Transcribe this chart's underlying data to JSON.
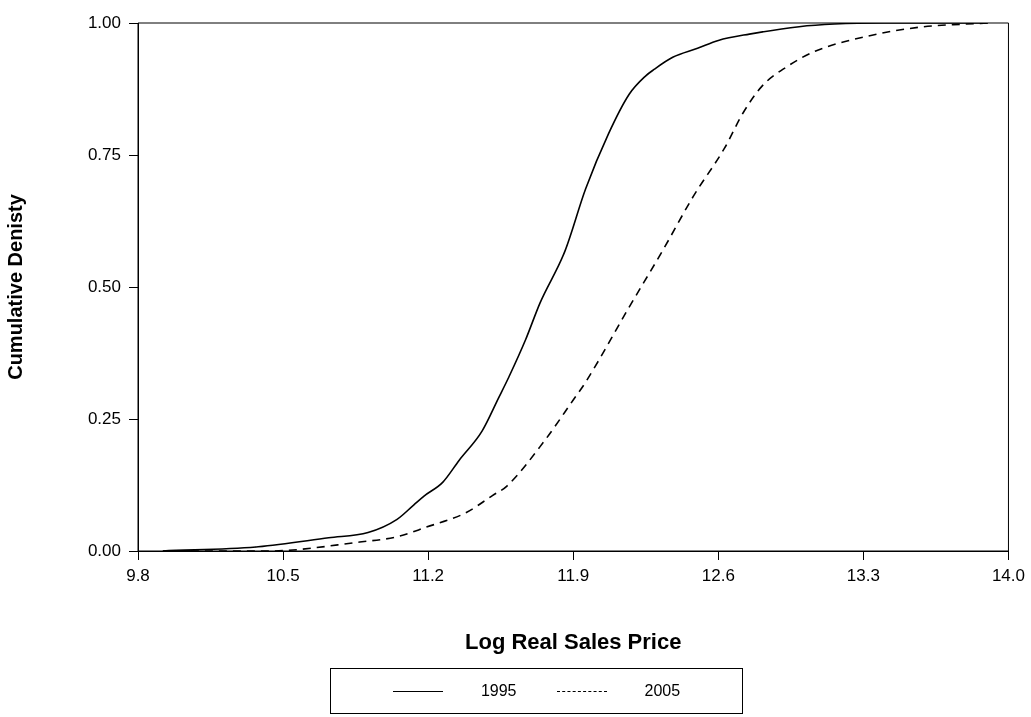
{
  "chart_data": {
    "type": "line",
    "xlabel": "Log Real Sales Price",
    "ylabel": "Cumulative Denisty",
    "xlim": [
      9.8,
      14.0
    ],
    "ylim": [
      0,
      1
    ],
    "xticks": [
      9.8,
      10.5,
      11.2,
      11.9,
      12.6,
      13.3,
      {
        "value": 14,
        "label": "14.0"
      }
    ],
    "yticks": [
      {
        "value": 0,
        "label": "0.00"
      },
      {
        "value": 0.25,
        "label": "0.25"
      },
      {
        "value": 0.5,
        "label": "0.50"
      },
      {
        "value": 0.75,
        "label": "0.75"
      },
      {
        "value": 1,
        "label": "1.00"
      }
    ],
    "legend": "bottom",
    "marker": "none",
    "series": [
      {
        "name": "1995",
        "color": "#000000",
        "line_style": "solid",
        "x": [
          9.92,
          10.38,
          10.72,
          10.91,
          11.05,
          11.13,
          11.18,
          11.27,
          11.35,
          11.46,
          11.54,
          11.59,
          11.67,
          11.74,
          11.86,
          11.96,
          12.07,
          12.17,
          12.25,
          12.29,
          12.38,
          12.5,
          12.6,
          12.75,
          12.99,
          13.16,
          13.4,
          13.9
        ],
        "values": [
          0,
          0.008,
          0.025,
          0.035,
          0.06,
          0.087,
          0.104,
          0.13,
          0.172,
          0.227,
          0.29,
          0.33,
          0.4,
          0.47,
          0.568,
          0.686,
          0.79,
          0.865,
          0.9,
          0.912,
          0.935,
          0.952,
          0.967,
          0.979,
          0.993,
          0.998,
          1,
          1
        ]
      },
      {
        "name": "2005",
        "color": "#000000",
        "line_style": "dashed",
        "x": [
          9.92,
          10.43,
          10.87,
          11.05,
          11.19,
          11.38,
          11.51,
          11.58,
          11.76,
          11.9,
          11.96,
          12.17,
          12.33,
          12.48,
          12.63,
          12.72,
          12.81,
          12.93,
          13.07,
          13.32,
          13.57,
          13.79,
          13.9
        ],
        "values": [
          0,
          0,
          0.017,
          0.027,
          0.045,
          0.072,
          0.105,
          0.123,
          0.208,
          0.286,
          0.32,
          0.462,
          0.568,
          0.672,
          0.763,
          0.83,
          0.88,
          0.917,
          0.947,
          0.975,
          0.992,
          0.998,
          1
        ]
      }
    ]
  }
}
